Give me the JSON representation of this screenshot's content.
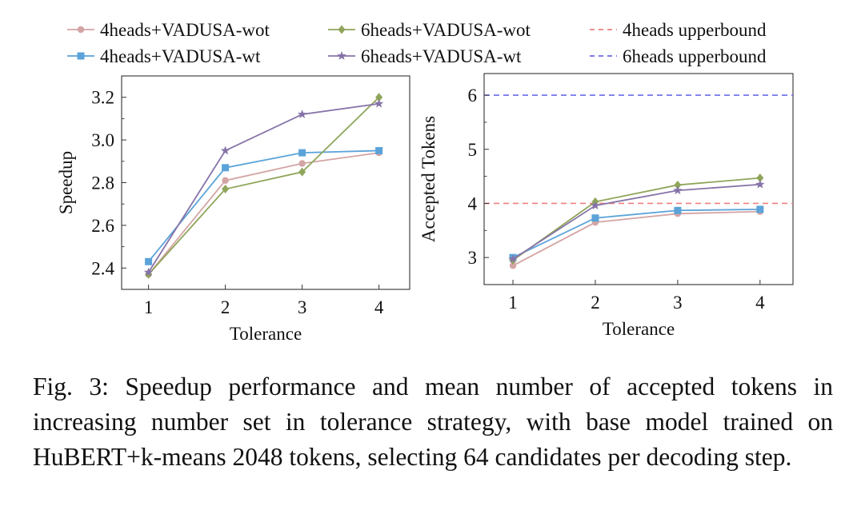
{
  "figure": {
    "caption": "Fig. 3: Speedup performance and mean number of accepted tokens in increasing number set in tolerance strategy, with base model trained on HuBERT+k-means 2048 tokens, selecting 64 candidates per decoding step."
  },
  "legend": {
    "entries": [
      {
        "label": "4heads+VADUSA-wot",
        "color": "#d4a4a4",
        "marker": "circle",
        "style": "solid"
      },
      {
        "label": "6heads+VADUSA-wot",
        "color": "#8fa55a",
        "marker": "diamond",
        "style": "solid"
      },
      {
        "label": "4heads upperbound",
        "color": "#f08080",
        "marker": "none",
        "style": "dashed"
      },
      {
        "label": "4heads+VADUSA-wt",
        "color": "#5ba3d9",
        "marker": "square",
        "style": "solid"
      },
      {
        "label": "6heads+VADUSA-wt",
        "color": "#8673a8",
        "marker": "star",
        "style": "solid"
      },
      {
        "label": "6heads upperbound",
        "color": "#6a6ae8",
        "marker": "none",
        "style": "dashed"
      }
    ]
  },
  "chart_data": [
    {
      "type": "line",
      "xlabel": "Tolerance",
      "ylabel": "Speedup",
      "x": [
        1,
        2,
        3,
        4
      ],
      "xticks": [
        "1",
        "2",
        "3",
        "4"
      ],
      "yticks": [
        "2.4",
        "2.6",
        "2.8",
        "3.0",
        "3.2"
      ],
      "xlim": [
        0.65,
        4.4
      ],
      "ylim": [
        2.3,
        3.3
      ],
      "grid": false,
      "series": [
        {
          "name": "4heads+VADUSA-wot",
          "values": [
            2.37,
            2.81,
            2.89,
            2.94
          ],
          "color": "#d4a4a4",
          "marker": "circle"
        },
        {
          "name": "4heads+VADUSA-wt",
          "values": [
            2.43,
            2.87,
            2.94,
            2.95
          ],
          "color": "#5ba3d9",
          "marker": "square"
        },
        {
          "name": "6heads+VADUSA-wot",
          "values": [
            2.37,
            2.77,
            2.85,
            3.2
          ],
          "color": "#8fa55a",
          "marker": "diamond"
        },
        {
          "name": "6heads+VADUSA-wt",
          "values": [
            2.38,
            2.95,
            3.12,
            3.17
          ],
          "color": "#8673a8",
          "marker": "star"
        }
      ]
    },
    {
      "type": "line",
      "xlabel": "Tolerance",
      "ylabel": "Accepted Tokens",
      "x": [
        1,
        2,
        3,
        4
      ],
      "xticks": [
        "1",
        "2",
        "3",
        "4"
      ],
      "yticks": [
        "3",
        "4",
        "5",
        "6"
      ],
      "xlim": [
        0.65,
        4.4
      ],
      "ylim": [
        2.5,
        6.4
      ],
      "grid": false,
      "series": [
        {
          "name": "4heads+VADUSA-wot",
          "values": [
            2.85,
            3.65,
            3.81,
            3.85
          ],
          "color": "#d4a4a4",
          "marker": "circle"
        },
        {
          "name": "4heads+VADUSA-wt",
          "values": [
            3.0,
            3.73,
            3.87,
            3.89
          ],
          "color": "#5ba3d9",
          "marker": "square"
        },
        {
          "name": "6heads+VADUSA-wot",
          "values": [
            2.95,
            4.03,
            4.34,
            4.47
          ],
          "color": "#8fa55a",
          "marker": "diamond"
        },
        {
          "name": "6heads+VADUSA-wt",
          "values": [
            2.97,
            3.96,
            4.24,
            4.35
          ],
          "color": "#8673a8",
          "marker": "star"
        }
      ],
      "reference_lines": [
        {
          "name": "4heads upperbound",
          "y": 4,
          "color": "#f08080",
          "style": "dashed"
        },
        {
          "name": "6heads upperbound",
          "y": 6,
          "color": "#6a6ae8",
          "style": "dashed"
        }
      ]
    }
  ]
}
